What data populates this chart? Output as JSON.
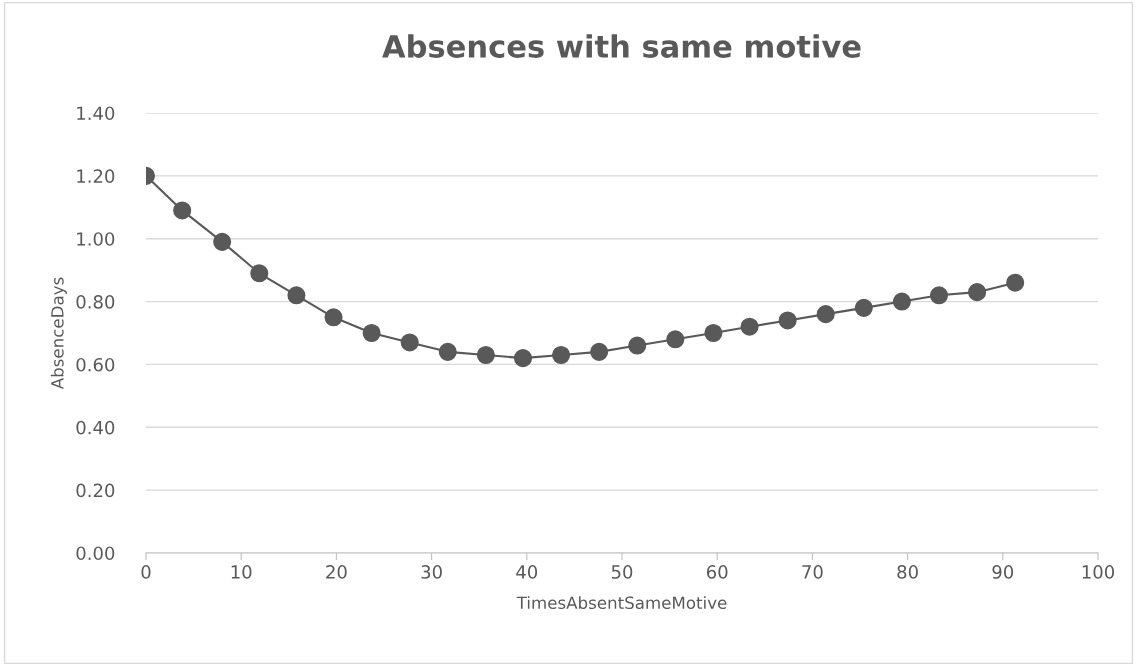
{
  "chart_data": {
    "type": "line",
    "title": "Absences with same motive",
    "xlabel": "TimesAbsentSameMotive",
    "ylabel": "AbsenceDays",
    "x": [
      0,
      3.8,
      8,
      11.9,
      15.8,
      19.7,
      23.7,
      27.7,
      31.7,
      35.7,
      39.6,
      43.6,
      47.6,
      51.6,
      55.6,
      59.6,
      63.4,
      67.4,
      71.4,
      75.4,
      79.4,
      83.3,
      87.3,
      91.3
    ],
    "series": [
      {
        "color": "#595959",
        "values": [
          1.2,
          1.09,
          0.99,
          0.89,
          0.82,
          0.75,
          0.7,
          0.67,
          0.64,
          0.63,
          0.62,
          0.63,
          0.64,
          0.66,
          0.68,
          0.7,
          0.72,
          0.74,
          0.76,
          0.78,
          0.8,
          0.82,
          0.83,
          0.86
        ]
      }
    ],
    "xlim": [
      0,
      100
    ],
    "xticks": [
      0,
      10,
      20,
      30,
      40,
      50,
      60,
      70,
      80,
      90,
      100
    ],
    "ylim": [
      0,
      1.4
    ],
    "yticks": [
      {
        "value": 0,
        "label": "0.00"
      },
      {
        "value": 0.2,
        "label": "0.20"
      },
      {
        "value": 0.4,
        "label": "0.40"
      },
      {
        "value": 0.6,
        "label": "0.60"
      },
      {
        "value": 0.8,
        "label": "0.80"
      },
      {
        "value": 1.0,
        "label": "1.00"
      },
      {
        "value": 1.2,
        "label": "1.20"
      },
      {
        "value": 1.4,
        "label": "1.40"
      }
    ],
    "grid": "y",
    "marker": "circle",
    "line_style": "solid"
  }
}
